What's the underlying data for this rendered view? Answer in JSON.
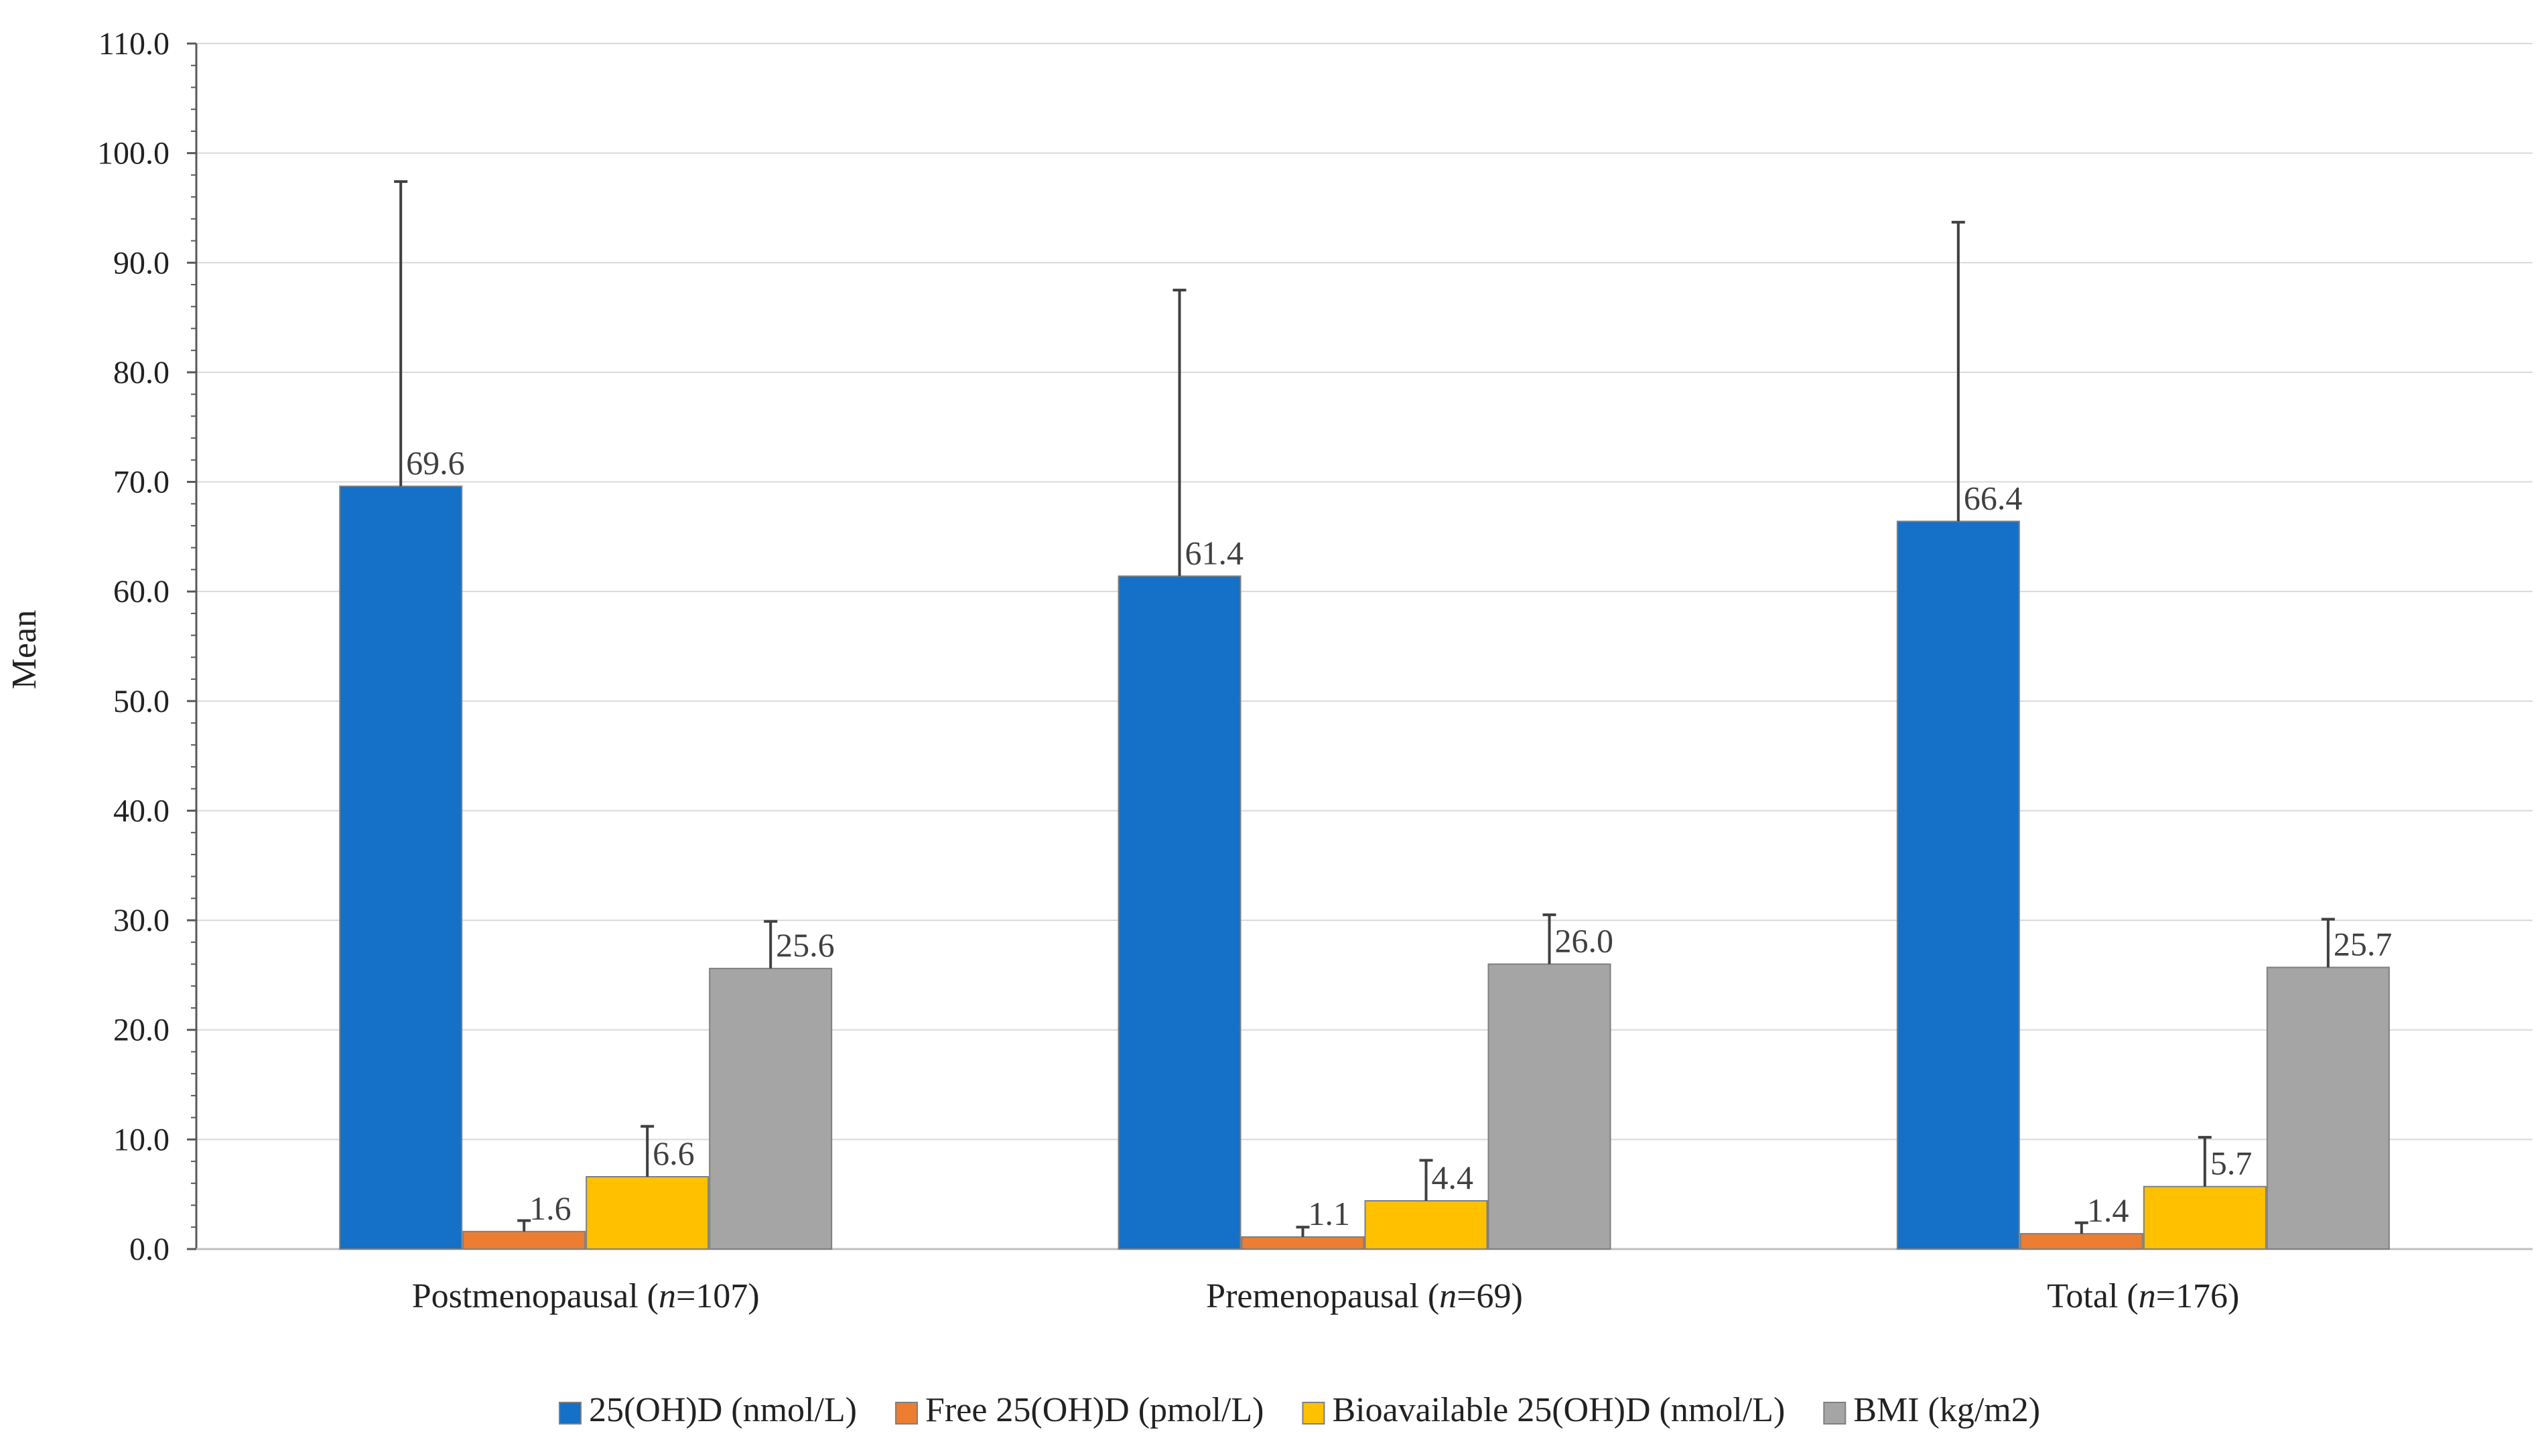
{
  "chart_data": {
    "type": "bar",
    "ylabel": "Mean",
    "ylim": [
      0,
      110
    ],
    "ytick_step": 10,
    "ytick_labels": [
      "0.0",
      "10.0",
      "20.0",
      "30.0",
      "40.0",
      "50.0",
      "60.0",
      "70.0",
      "80.0",
      "90.0",
      "100.0",
      "110.0"
    ],
    "grid": true,
    "legend_position": "bottom",
    "categories": [
      {
        "prefix": "Postmenopausal (",
        "n": "n",
        "suffix": "=107)"
      },
      {
        "prefix": "Premenopausal (",
        "n": "n",
        "suffix": "=69)"
      },
      {
        "prefix": "Total (",
        "n": "n",
        "suffix": "=176)"
      }
    ],
    "series": [
      {
        "name": "25(OH)D (nmol/L)",
        "color": "#1570C8",
        "values": [
          69.6,
          61.4,
          66.4
        ],
        "labels": [
          "69.6",
          "61.4",
          "66.4"
        ],
        "error_upper": [
          97.4,
          87.5,
          93.7
        ]
      },
      {
        "name": "Free 25(OH)D (pmol/L)",
        "color": "#ED7D31",
        "values": [
          1.6,
          1.1,
          1.4
        ],
        "labels": [
          "1.6",
          "1.1",
          "1.4"
        ],
        "error_upper": [
          2.6,
          2.0,
          2.4
        ]
      },
      {
        "name": "Bioavailable 25(OH)D (nmol/L)",
        "color": "#FFC000",
        "values": [
          6.6,
          4.4,
          5.7
        ],
        "labels": [
          "6.6",
          "4.4",
          "5.7"
        ],
        "error_upper": [
          11.2,
          8.1,
          10.2
        ]
      },
      {
        "name": "BMI (kg/m2)",
        "color": "#A5A5A5",
        "values": [
          25.6,
          26.0,
          25.7
        ],
        "labels": [
          "25.6",
          "26.0",
          "25.7"
        ],
        "error_upper": [
          29.9,
          30.5,
          30.1
        ]
      }
    ]
  }
}
